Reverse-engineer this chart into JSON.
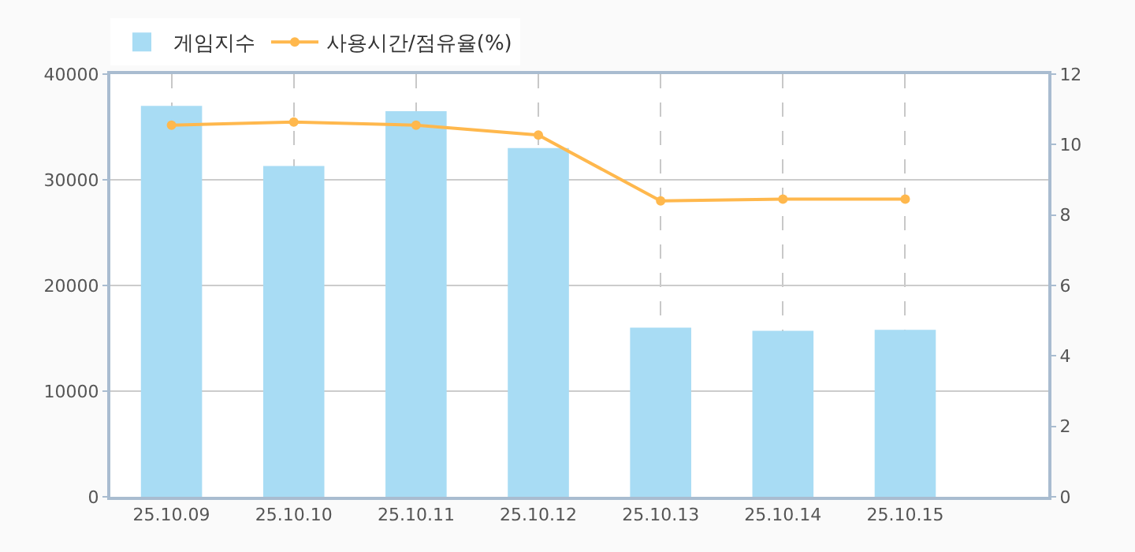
{
  "chart_data": {
    "type": "bar",
    "categories": [
      "25.10.09",
      "25.10.10",
      "25.10.11",
      "25.10.12",
      "25.10.13",
      "25.10.14",
      "25.10.15"
    ],
    "series": [
      {
        "name": "게임지수",
        "color": "#a8dcf4",
        "values": [
          37000,
          31300,
          36500,
          33000,
          16000,
          15700,
          15800
        ]
      },
      {
        "name": "사용시간/점유율(%)",
        "type": "line",
        "axis": "y2",
        "color": "#ffb84d",
        "values": [
          10.55,
          10.64,
          10.55,
          10.27,
          8.4,
          8.45,
          8.45
        ]
      }
    ],
    "ylim": [
      0,
      40000
    ],
    "yticks": [
      0,
      10000,
      20000,
      30000,
      40000
    ],
    "y2lim": [
      0,
      12
    ],
    "y2ticks": [
      0,
      2,
      4,
      6,
      8,
      10,
      12
    ],
    "grid": true,
    "legend": "top left",
    "marker": "circle",
    "line_style": "solid"
  }
}
